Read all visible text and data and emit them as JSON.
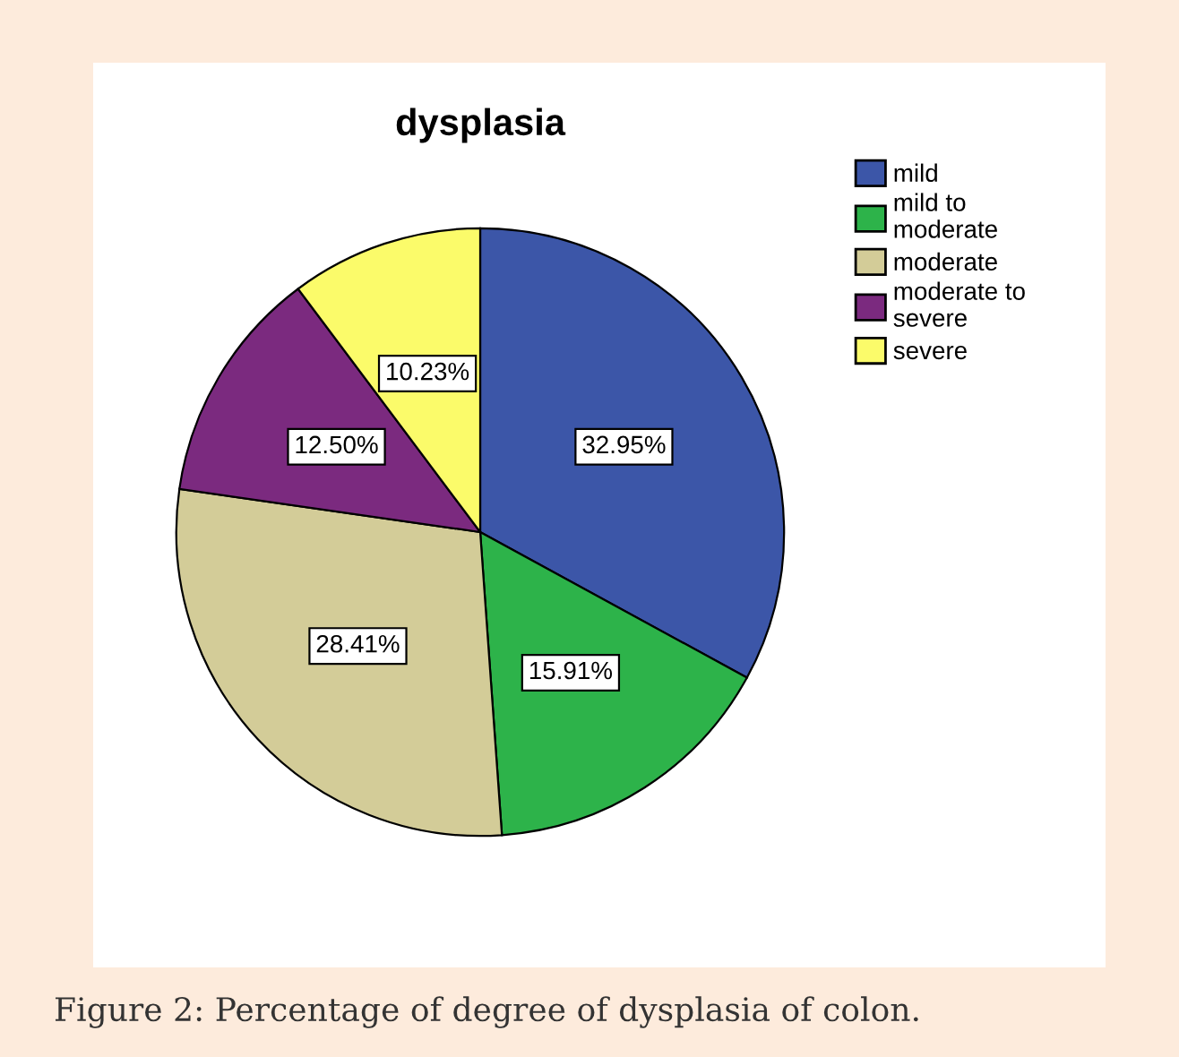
{
  "chart_data": {
    "type": "pie",
    "title": "dysplasia",
    "categories": [
      "mild",
      "mild to\nmoderate",
      "moderate",
      "moderate to\nsevere",
      "severe"
    ],
    "values": [
      32.95,
      15.91,
      28.41,
      12.5,
      10.23
    ],
    "value_labels": [
      "32.95%",
      "15.91%",
      "28.41%",
      "12.50%",
      "10.23%"
    ],
    "colors": [
      "#3c56a8",
      "#2db34a",
      "#d3cc98",
      "#7b2a7f",
      "#fbfb6a"
    ],
    "legend": "right",
    "annotations": [
      "Figure 2: Percentage of degree of dysplasia of colon."
    ]
  }
}
